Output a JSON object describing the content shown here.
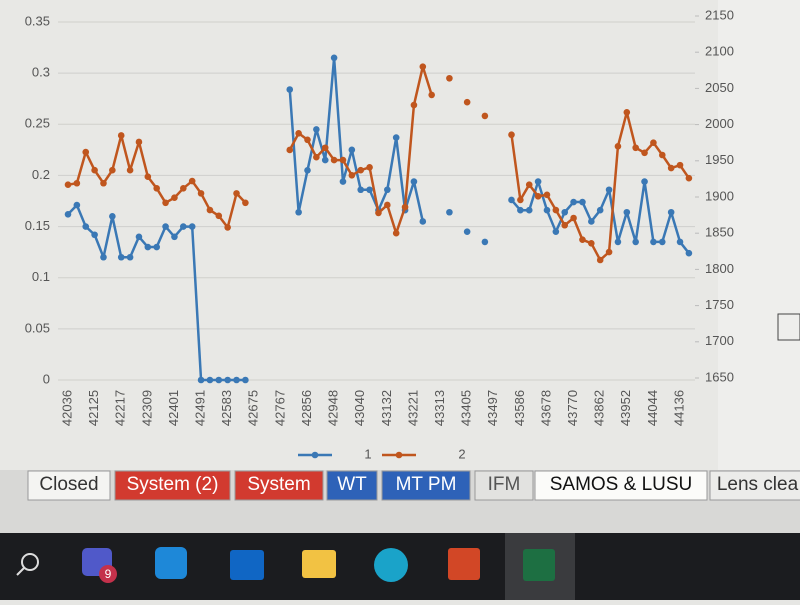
{
  "chart_data": {
    "type": "line",
    "categories": [
      "42036",
      null,
      null,
      "42125",
      null,
      null,
      "42217",
      null,
      null,
      "42309",
      null,
      null,
      "42401",
      null,
      null,
      "42491",
      null,
      null,
      "42583",
      null,
      null,
      "42675",
      null,
      null,
      "42767",
      null,
      null,
      "42856",
      null,
      null,
      "42948",
      null,
      null,
      "43040",
      null,
      null,
      "43132",
      null,
      null,
      "43221",
      null,
      null,
      "43313",
      null,
      null,
      "43405",
      null,
      null,
      "43497",
      null,
      null,
      "43586",
      null,
      null,
      "43678",
      null,
      null,
      "43770",
      null,
      null,
      "43862",
      null,
      null,
      "43952",
      null,
      null,
      "44044",
      null,
      null,
      "44136",
      null
    ],
    "series": [
      {
        "name": "1",
        "color": "#3a78b5",
        "axis": "y",
        "values": [
          0.162,
          0.171,
          0.15,
          0.142,
          0.12,
          0.16,
          0.12,
          0.12,
          0.14,
          0.13,
          0.13,
          0.15,
          0.14,
          0.15,
          0.15,
          0,
          0,
          0,
          0,
          0,
          0,
          null,
          null,
          null,
          null,
          0.284,
          0.164,
          0.205,
          0.245,
          0.215,
          0.315,
          0.194,
          0.225,
          0.186,
          0.186,
          0.166,
          0.186,
          0.237,
          0.166,
          0.194,
          0.155,
          null,
          null,
          0.164,
          null,
          0.145,
          null,
          0.135,
          null,
          null,
          0.176,
          0.166,
          0.166,
          0.194,
          0.166,
          0.145,
          0.164,
          0.174,
          0.174,
          0.155,
          0.166,
          0.186,
          0.135,
          0.164,
          0.135,
          0.194,
          0.135,
          0.135,
          0.164,
          0.135,
          0.124
        ]
      },
      {
        "name": "2",
        "color": "#c0561e",
        "axis": "y2",
        "values": [
          1917,
          1919,
          1962,
          1937,
          1919,
          1937,
          1985,
          1937,
          1976,
          1928,
          1912,
          1892,
          1899,
          1912,
          1922,
          1905,
          1882,
          1874,
          1858,
          1905,
          1892,
          null,
          null,
          null,
          null,
          1965,
          1988,
          1979,
          1955,
          1968,
          1951,
          1951,
          1930,
          1937,
          1941,
          1878,
          1889,
          1850,
          1886,
          2027,
          2080,
          2041,
          null,
          2064,
          null,
          2031,
          null,
          2012,
          null,
          null,
          1986,
          1896,
          1917,
          1901,
          1903,
          1882,
          1861,
          1871,
          1841,
          1836,
          1813,
          1824,
          1970,
          2017,
          1968,
          1961,
          1975,
          1958,
          1940,
          1944,
          1926
        ]
      }
    ],
    "ylim": [
      0,
      0.35
    ],
    "yticks": [
      0,
      0.05,
      0.1,
      0.15,
      0.2,
      0.25,
      0.3,
      0.35
    ],
    "y2lim": [
      1650,
      2150
    ],
    "y2ticks": [
      1650,
      1700,
      1750,
      1800,
      1850,
      1900,
      1950,
      2000,
      2050,
      2100,
      2150
    ],
    "grid": true,
    "legend": "bottom"
  },
  "sheet_tabs": [
    "Closed",
    "System (2)",
    "System",
    "WT",
    "MT PM",
    "IFM",
    "SAMOS & LUSU",
    "Lens clea"
  ],
  "taskbar": {
    "teams_badge": "9"
  }
}
